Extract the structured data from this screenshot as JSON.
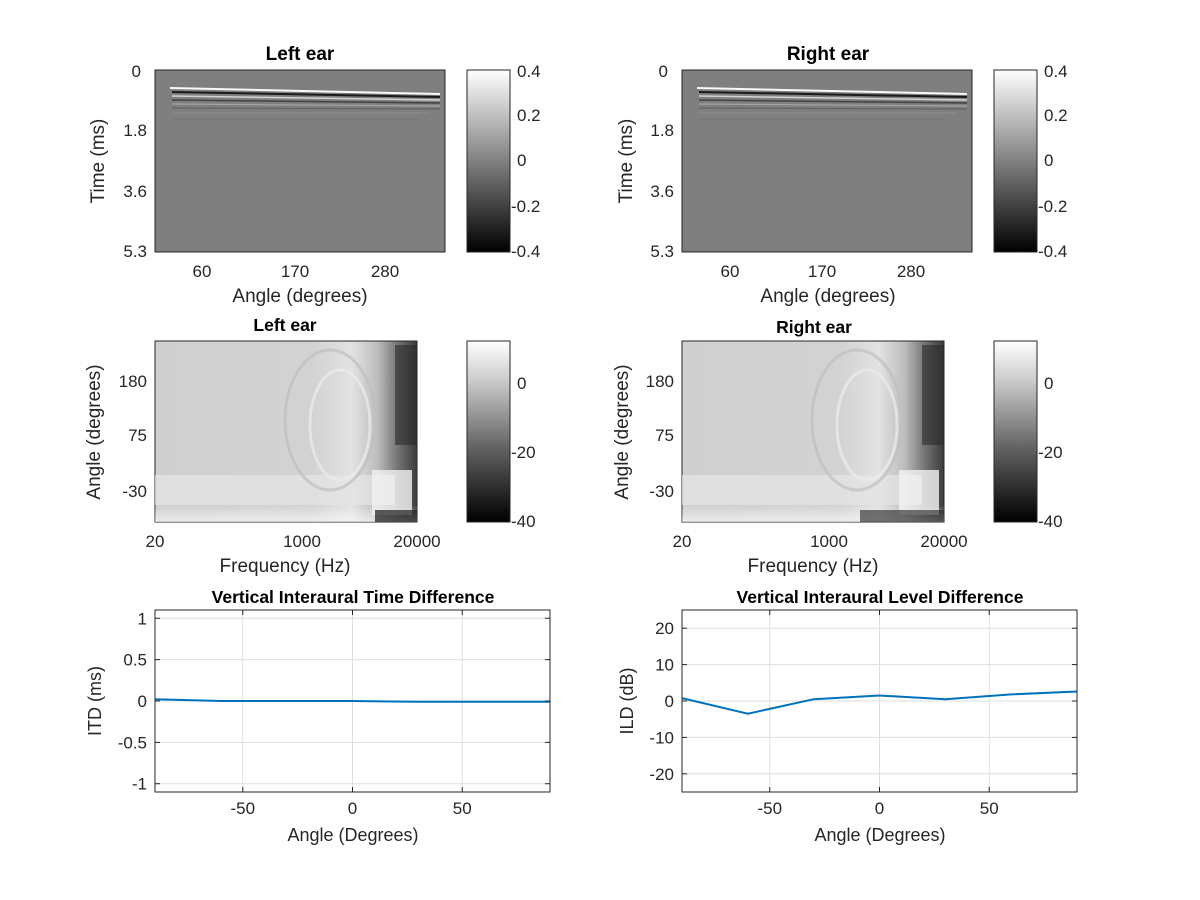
{
  "chart_data": [
    {
      "type": "heatmap",
      "title": "Left ear",
      "xlabel": "Angle (degrees)",
      "ylabel": "Time (ms)",
      "x_ticks": [
        "60",
        "170",
        "280"
      ],
      "y_ticks": [
        "0",
        "1.8",
        "3.6",
        "5.3"
      ],
      "colorbar": {
        "ticks": [
          "0.4",
          "0.2",
          "0",
          "-0.2",
          "-0.4"
        ],
        "range": [
          -0.4,
          0.4
        ],
        "colormap": "gray"
      },
      "notes": "impulse responses concentrated near 0.4-0.6 ms, decaying over time"
    },
    {
      "type": "heatmap",
      "title": "Right ear",
      "xlabel": "Angle (degrees)",
      "ylabel": "Time (ms)",
      "x_ticks": [
        "60",
        "170",
        "280"
      ],
      "y_ticks": [
        "0",
        "1.8",
        "3.6",
        "5.3"
      ],
      "colorbar": {
        "ticks": [
          "0.4",
          "0.2",
          "0",
          "-0.2",
          "-0.4"
        ],
        "range": [
          -0.4,
          0.4
        ],
        "colormap": "gray"
      }
    },
    {
      "type": "heatmap",
      "title": "Left ear",
      "xlabel": "Frequency (Hz)",
      "ylabel": "Angle (degrees)",
      "x_ticks": [
        "20",
        "1000",
        "20000"
      ],
      "y_ticks": [
        "180",
        "75",
        "-30"
      ],
      "colorbar": {
        "ticks": [
          "0",
          "-20",
          "-40"
        ],
        "range": [
          -40,
          10
        ],
        "colormap": "gray"
      }
    },
    {
      "type": "heatmap",
      "title": "Right ear",
      "xlabel": "Frequency (Hz)",
      "ylabel": "Angle (degrees)",
      "x_ticks": [
        "20",
        "1000",
        "20000"
      ],
      "y_ticks": [
        "180",
        "75",
        "-30"
      ],
      "colorbar": {
        "ticks": [
          "0",
          "-20",
          "-40"
        ],
        "range": [
          -40,
          10
        ],
        "colormap": "gray"
      }
    },
    {
      "type": "line",
      "title": "Vertical Interaural Time Difference",
      "xlabel": "Angle (Degrees)",
      "ylabel": "ITD (ms)",
      "xlim": [
        -90,
        90
      ],
      "ylim": [
        -1.1,
        1.1
      ],
      "x_ticks": [
        -50,
        0,
        50
      ],
      "y_ticks": [
        1,
        0.5,
        0,
        -0.5,
        -1
      ],
      "grid": true,
      "line_color": "#0072BD",
      "series": [
        {
          "x": [
            -90,
            -60,
            -30,
            0,
            30,
            60,
            90
          ],
          "y": [
            0.02,
            0.0,
            0.0,
            0.0,
            -0.01,
            -0.01,
            -0.01
          ]
        }
      ]
    },
    {
      "type": "line",
      "title": "Vertical Interaural Level Difference",
      "xlabel": "Angle (Degrees)",
      "ylabel": "ILD (dB)",
      "xlim": [
        -90,
        90
      ],
      "ylim": [
        -25,
        25
      ],
      "x_ticks": [
        -50,
        0,
        50
      ],
      "y_ticks": [
        20,
        10,
        0,
        -10,
        -20
      ],
      "grid": true,
      "line_color": "#0072BD",
      "series": [
        {
          "x": [
            -90,
            -60,
            -30,
            0,
            30,
            60,
            90
          ],
          "y": [
            0.8,
            -3.5,
            0.5,
            1.5,
            0.5,
            1.8,
            2.6
          ]
        }
      ]
    }
  ]
}
